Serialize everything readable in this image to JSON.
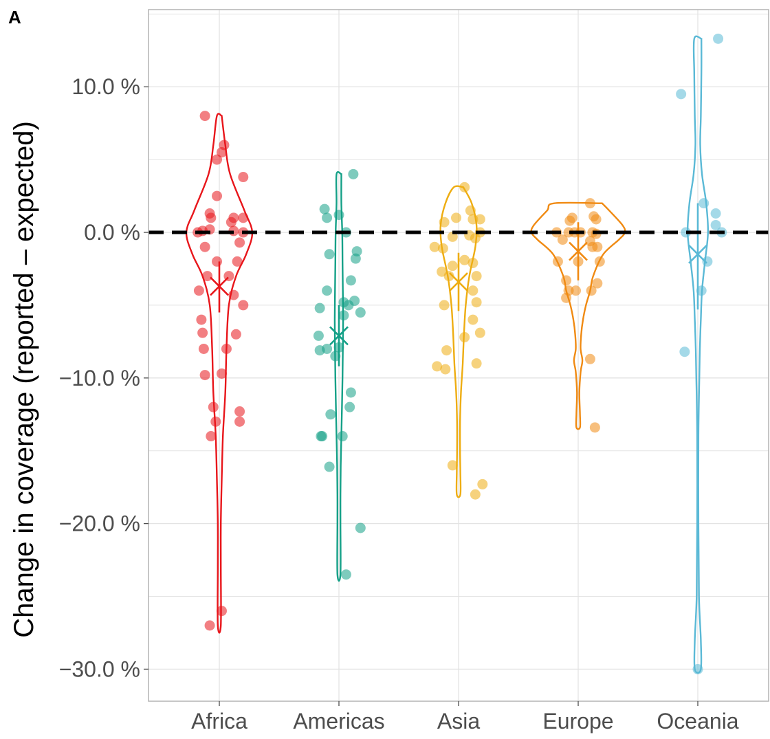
{
  "panel_label": "A",
  "colors": {
    "Africa": "#e8161b",
    "Americas": "#14a087",
    "Asia": "#eead12",
    "Europe": "#f08a12",
    "Oceania": "#5ab9d6",
    "grid": "#e3e3e3",
    "axis": "#b3b3b3",
    "reference_line": "#000000"
  },
  "chart_data": {
    "type": "scatter",
    "subtype": "violin with jittered points, mean marker (x) and error bar",
    "title": "",
    "xlabel": "",
    "ylabel": "Change in coverage (reported – expected)",
    "ylim": [
      -32.2,
      15.3
    ],
    "y_ticks": [
      -30,
      -20,
      -10,
      0,
      10
    ],
    "y_tick_labels": [
      "−30.0 %",
      "−20.0 %",
      "−10.0 %",
      "0.0 %",
      "10.0 %"
    ],
    "reference_line": {
      "y": 0,
      "style": "dashed"
    },
    "grid": true,
    "legend": "none",
    "categories": [
      "Africa",
      "Americas",
      "Asia",
      "Europe",
      "Oceania"
    ],
    "series": [
      {
        "name": "Africa",
        "summary": {
          "mean": -3.7,
          "lower": -5.5,
          "upper": -2.0
        },
        "violin": {
          "ymin": -27,
          "ymax": 8,
          "profile": [
            [
              8,
              0.04
            ],
            [
              6,
              0.1
            ],
            [
              4,
              0.18
            ],
            [
              1.5,
              0.42
            ],
            [
              0,
              0.55
            ],
            [
              -1.5,
              0.45
            ],
            [
              -3,
              0.28
            ],
            [
              -5,
              0.16
            ],
            [
              -8,
              0.12
            ],
            [
              -11,
              0.1
            ],
            [
              -14,
              0.06
            ],
            [
              -17,
              0.04
            ],
            [
              -20,
              0.025
            ],
            [
              -23,
              0.025
            ],
            [
              -27,
              0.025
            ]
          ]
        },
        "points": [
          {
            "x": -0.12,
            "y": 8.0
          },
          {
            "x": 0.04,
            "y": 6.0
          },
          {
            "x": 0.02,
            "y": 5.5
          },
          {
            "x": -0.02,
            "y": 5.0
          },
          {
            "x": 0.2,
            "y": 3.8
          },
          {
            "x": -0.02,
            "y": 2.5
          },
          {
            "x": -0.08,
            "y": 1.3
          },
          {
            "x": -0.07,
            "y": 1.0
          },
          {
            "x": 0.12,
            "y": 1.0
          },
          {
            "x": 0.2,
            "y": 1.0
          },
          {
            "x": 0.1,
            "y": 0.7
          },
          {
            "x": -0.14,
            "y": 0.1
          },
          {
            "x": -0.08,
            "y": 0.2
          },
          {
            "x": 0.12,
            "y": 0.1
          },
          {
            "x": 0.2,
            "y": 0.0
          },
          {
            "x": -0.18,
            "y": 0.0
          },
          {
            "x": -0.12,
            "y": -1.0
          },
          {
            "x": 0.17,
            "y": -0.7
          },
          {
            "x": 0.15,
            "y": -2.0
          },
          {
            "x": -0.02,
            "y": -2.0
          },
          {
            "x": -0.1,
            "y": -3.0
          },
          {
            "x": 0.08,
            "y": -3.0
          },
          {
            "x": -0.17,
            "y": -4.0
          },
          {
            "x": 0.12,
            "y": -4.3
          },
          {
            "x": 0.2,
            "y": -5.0
          },
          {
            "x": -0.15,
            "y": -6.0
          },
          {
            "x": -0.14,
            "y": -6.9
          },
          {
            "x": 0.14,
            "y": -7.0
          },
          {
            "x": -0.13,
            "y": -8.0
          },
          {
            "x": 0.06,
            "y": -8.0
          },
          {
            "x": -0.12,
            "y": -9.8
          },
          {
            "x": 0.02,
            "y": -9.7
          },
          {
            "x": -0.05,
            "y": -12.0
          },
          {
            "x": -0.03,
            "y": -13.0
          },
          {
            "x": 0.17,
            "y": -12.3
          },
          {
            "x": 0.17,
            "y": -13.0
          },
          {
            "x": -0.07,
            "y": -14.0
          },
          {
            "x": 0.02,
            "y": -26.0
          },
          {
            "x": -0.08,
            "y": -27.0
          }
        ]
      },
      {
        "name": "Americas",
        "summary": {
          "mean": -7.1,
          "lower": -9.2,
          "upper": -5.0
        },
        "violin": {
          "ymin": -23.5,
          "ymax": 4,
          "profile": [
            [
              4,
              0.04
            ],
            [
              2,
              0.04
            ],
            [
              0,
              0.055
            ],
            [
              -2,
              0.06
            ],
            [
              -4,
              0.065
            ],
            [
              -6,
              0.07
            ],
            [
              -8,
              0.065
            ],
            [
              -10,
              0.06
            ],
            [
              -12,
              0.05
            ],
            [
              -14,
              0.04
            ],
            [
              -16,
              0.03
            ],
            [
              -18,
              0.025
            ],
            [
              -20,
              0.025
            ],
            [
              -23.5,
              0.025
            ]
          ]
        },
        "points": [
          {
            "x": 0.12,
            "y": 4.0
          },
          {
            "x": -0.12,
            "y": 1.6
          },
          {
            "x": -0.1,
            "y": 1.0
          },
          {
            "x": 0.0,
            "y": 1.2
          },
          {
            "x": 0.06,
            "y": 0.0
          },
          {
            "x": -0.08,
            "y": -1.5
          },
          {
            "x": 0.15,
            "y": -1.3
          },
          {
            "x": 0.14,
            "y": -1.8
          },
          {
            "x": 0.1,
            "y": -3.3
          },
          {
            "x": -0.1,
            "y": -4.0
          },
          {
            "x": 0.04,
            "y": -4.8
          },
          {
            "x": 0.13,
            "y": -4.7
          },
          {
            "x": 0.08,
            "y": -5.0
          },
          {
            "x": -0.16,
            "y": -5.2
          },
          {
            "x": 0.18,
            "y": -5.5
          },
          {
            "x": 0.04,
            "y": -5.7
          },
          {
            "x": -0.17,
            "y": -7.1
          },
          {
            "x": -0.16,
            "y": -8.1
          },
          {
            "x": -0.1,
            "y": -8.0
          },
          {
            "x": 0.0,
            "y": -7.9
          },
          {
            "x": -0.03,
            "y": -8.5
          },
          {
            "x": 0.1,
            "y": -11.0
          },
          {
            "x": 0.09,
            "y": -12.0
          },
          {
            "x": -0.07,
            "y": -12.5
          },
          {
            "x": -0.14,
            "y": -14.0
          },
          {
            "x": -0.15,
            "y": -14.0
          },
          {
            "x": 0.03,
            "y": -14.0
          },
          {
            "x": -0.08,
            "y": -16.1
          },
          {
            "x": 0.18,
            "y": -20.3
          },
          {
            "x": 0.06,
            "y": -23.5
          }
        ]
      },
      {
        "name": "Asia",
        "summary": {
          "mean": -3.4,
          "lower": -5.4,
          "upper": -1.4
        },
        "violin": {
          "ymin": -18,
          "ymax": 3.1,
          "profile": [
            [
              3.1,
              0.08
            ],
            [
              2,
              0.22
            ],
            [
              0.5,
              0.3
            ],
            [
              -1,
              0.28
            ],
            [
              -3,
              0.18
            ],
            [
              -5,
              0.12
            ],
            [
              -7,
              0.09
            ],
            [
              -9,
              0.07
            ],
            [
              -11,
              0.04
            ],
            [
              -13,
              0.025
            ],
            [
              -15,
              0.025
            ],
            [
              -16.5,
              0.03
            ],
            [
              -18,
              0.03
            ]
          ]
        },
        "points": [
          {
            "x": 0.05,
            "y": 3.1
          },
          {
            "x": 0.1,
            "y": 1.5
          },
          {
            "x": -0.12,
            "y": 0.7
          },
          {
            "x": -0.02,
            "y": 1.0
          },
          {
            "x": 0.12,
            "y": 0.9
          },
          {
            "x": 0.18,
            "y": 0.9
          },
          {
            "x": 0.18,
            "y": 0.0
          },
          {
            "x": -0.05,
            "y": -0.3
          },
          {
            "x": 0.09,
            "y": -0.2
          },
          {
            "x": 0.14,
            "y": -0.4
          },
          {
            "x": -0.2,
            "y": -1.0
          },
          {
            "x": -0.13,
            "y": -1.1
          },
          {
            "x": -0.05,
            "y": -2.3
          },
          {
            "x": 0.05,
            "y": -1.9
          },
          {
            "x": 0.12,
            "y": -2.1
          },
          {
            "x": -0.14,
            "y": -2.7
          },
          {
            "x": -0.08,
            "y": -3.0
          },
          {
            "x": 0.15,
            "y": -3.0
          },
          {
            "x": 0.12,
            "y": -4.0
          },
          {
            "x": -0.12,
            "y": -5.0
          },
          {
            "x": 0.15,
            "y": -4.8
          },
          {
            "x": 0.12,
            "y": -6.0
          },
          {
            "x": 0.05,
            "y": -7.2
          },
          {
            "x": 0.18,
            "y": -6.9
          },
          {
            "x": -0.1,
            "y": -8.1
          },
          {
            "x": 0.15,
            "y": -9.0
          },
          {
            "x": -0.18,
            "y": -9.2
          },
          {
            "x": -0.11,
            "y": -9.4
          },
          {
            "x": -0.05,
            "y": -16.0
          },
          {
            "x": 0.2,
            "y": -17.3
          },
          {
            "x": 0.14,
            "y": -18.0
          }
        ]
      },
      {
        "name": "Europe",
        "summary": {
          "mean": -1.3,
          "lower": -3.3,
          "upper": 0.7
        },
        "violin": {
          "ymin": -13.4,
          "ymax": 2,
          "profile": [
            [
              2,
              0.4
            ],
            [
              1.5,
              0.52
            ],
            [
              0.5,
              0.74
            ],
            [
              0,
              0.78
            ],
            [
              -0.5,
              0.68
            ],
            [
              -1.5,
              0.42
            ],
            [
              -3,
              0.25
            ],
            [
              -4,
              0.2
            ],
            [
              -5,
              0.13
            ],
            [
              -6,
              0.08
            ],
            [
              -7,
              0.05
            ],
            [
              -8,
              0.04
            ],
            [
              -8.8,
              0.07
            ],
            [
              -9.6,
              0.04
            ],
            [
              -11,
              0.02
            ],
            [
              -12.5,
              0.03
            ],
            [
              -13.4,
              0.03
            ]
          ]
        },
        "points": [
          {
            "x": 0.1,
            "y": 2.0
          },
          {
            "x": -0.07,
            "y": 0.8
          },
          {
            "x": -0.05,
            "y": 1.0
          },
          {
            "x": 0.13,
            "y": 1.1
          },
          {
            "x": 0.15,
            "y": 0.9
          },
          {
            "x": -0.18,
            "y": 0.0
          },
          {
            "x": -0.08,
            "y": 0.0
          },
          {
            "x": -0.03,
            "y": 0.0
          },
          {
            "x": 0.02,
            "y": 0.0
          },
          {
            "x": 0.12,
            "y": 0.0
          },
          {
            "x": 0.15,
            "y": -0.1
          },
          {
            "x": -0.13,
            "y": -0.5
          },
          {
            "x": 0.1,
            "y": -0.6
          },
          {
            "x": 0.12,
            "y": -1.0
          },
          {
            "x": 0.16,
            "y": -1.0
          },
          {
            "x": -0.17,
            "y": -2.0
          },
          {
            "x": 0.0,
            "y": -2.0
          },
          {
            "x": 0.18,
            "y": -2.0
          },
          {
            "x": -0.1,
            "y": -3.3
          },
          {
            "x": 0.16,
            "y": -3.5
          },
          {
            "x": -0.08,
            "y": -4.0
          },
          {
            "x": -0.02,
            "y": -4.0
          },
          {
            "x": 0.11,
            "y": -4.0
          },
          {
            "x": -0.1,
            "y": -4.5
          },
          {
            "x": 0.1,
            "y": -8.7
          },
          {
            "x": 0.14,
            "y": -13.4
          }
        ]
      },
      {
        "name": "Oceania",
        "summary": {
          "mean": -1.5,
          "lower": -5.3,
          "upper": 2.0
        },
        "violin": {
          "ymin": -30,
          "ymax": 13.3,
          "profile": [
            [
              13.3,
              0.06
            ],
            [
              11,
              0.06
            ],
            [
              8,
              0.05
            ],
            [
              6,
              0.04
            ],
            [
              4,
              0.07
            ],
            [
              2,
              0.14
            ],
            [
              0,
              0.17
            ],
            [
              -2,
              0.12
            ],
            [
              -4,
              0.07
            ],
            [
              -6,
              0.05
            ],
            [
              -8,
              0.035
            ],
            [
              -10,
              0.025
            ],
            [
              -14,
              0.01
            ],
            [
              -20,
              0.01
            ],
            [
              -25,
              0.02
            ],
            [
              -28,
              0.05
            ],
            [
              -30,
              0.05
            ]
          ]
        },
        "points": [
          {
            "x": 0.17,
            "y": 13.3
          },
          {
            "x": -0.14,
            "y": 9.5
          },
          {
            "x": 0.05,
            "y": 2.0
          },
          {
            "x": 0.15,
            "y": 1.3
          },
          {
            "x": 0.15,
            "y": 0.5
          },
          {
            "x": -0.1,
            "y": 0.0
          },
          {
            "x": 0.2,
            "y": 0.0
          },
          {
            "x": 0.08,
            "y": -2.0
          },
          {
            "x": 0.03,
            "y": -4.0
          },
          {
            "x": -0.11,
            "y": -8.2
          },
          {
            "x": 0.0,
            "y": -30.0
          }
        ]
      }
    ]
  }
}
